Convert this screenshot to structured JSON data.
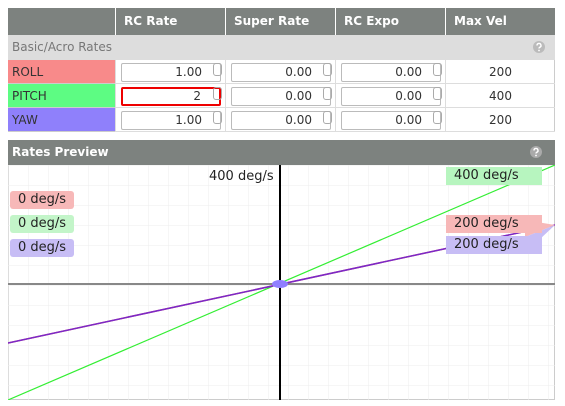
{
  "table": {
    "headers": [
      "RC Rate",
      "Super Rate",
      "RC Expo",
      "Max Vel [deg/s]"
    ],
    "section": "Basic/Acro Rates",
    "rows": [
      {
        "axis": "ROLL",
        "rc_rate": "1.00",
        "super_rate": "0.00",
        "rc_expo": "0.00",
        "max_vel": 200
      },
      {
        "axis": "PITCH",
        "rc_rate": "2",
        "super_rate": "0.00",
        "rc_expo": "0.00",
        "max_vel": 400
      },
      {
        "axis": "YAW",
        "rc_rate": "1.00",
        "super_rate": "0.00",
        "rc_expo": "0.00",
        "max_vel": 200
      }
    ]
  },
  "preview": {
    "title": "Rates Preview",
    "center_label": "400 deg/s",
    "left_labels": [
      "0 deg/s",
      "0 deg/s",
      "0 deg/s"
    ],
    "right_labels": [
      "400 deg/s",
      "200 deg/s",
      "200 deg/s"
    ]
  }
}
